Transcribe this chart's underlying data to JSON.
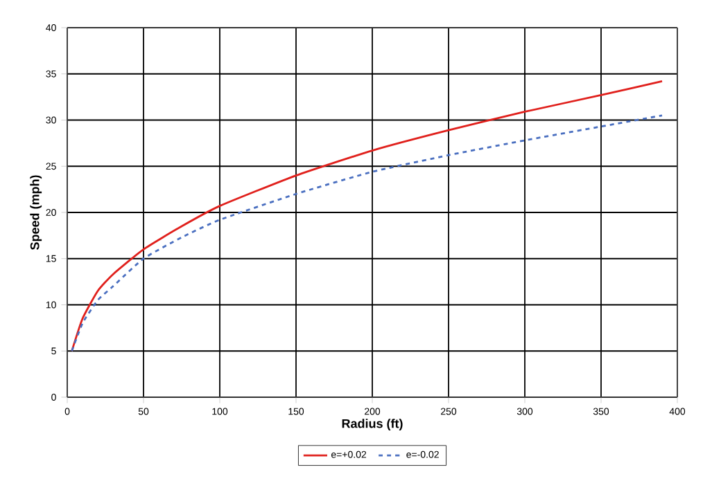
{
  "chart_data": {
    "type": "line",
    "xlabel": "Radius (ft)",
    "ylabel": "Speed (mph)",
    "xlim": [
      0,
      400
    ],
    "ylim": [
      0,
      40
    ],
    "xticks": [
      0,
      50,
      100,
      150,
      200,
      250,
      300,
      350,
      400
    ],
    "yticks": [
      0,
      5,
      10,
      15,
      20,
      25,
      30,
      35,
      40
    ],
    "grid": true,
    "legend": "bottom",
    "series": [
      {
        "name": "e=+0.02",
        "color": "#e0201c",
        "line_style": "solid",
        "x": [
          3,
          10,
          20,
          30,
          50,
          75,
          100,
          150,
          200,
          250,
          300,
          350,
          390
        ],
        "values": [
          5,
          8.5,
          11.5,
          13.3,
          16,
          18.5,
          20.7,
          24,
          26.7,
          28.9,
          30.9,
          32.7,
          34.2
        ]
      },
      {
        "name": "e=-0.02",
        "color": "#4a6fc0",
        "line_style": "dashed",
        "x": [
          3,
          10,
          20,
          30,
          50,
          75,
          100,
          150,
          200,
          250,
          300,
          350,
          390
        ],
        "values": [
          5,
          8,
          10.5,
          12,
          15,
          17.3,
          19.2,
          22,
          24.4,
          26.2,
          27.8,
          29.3,
          30.5
        ]
      }
    ]
  }
}
